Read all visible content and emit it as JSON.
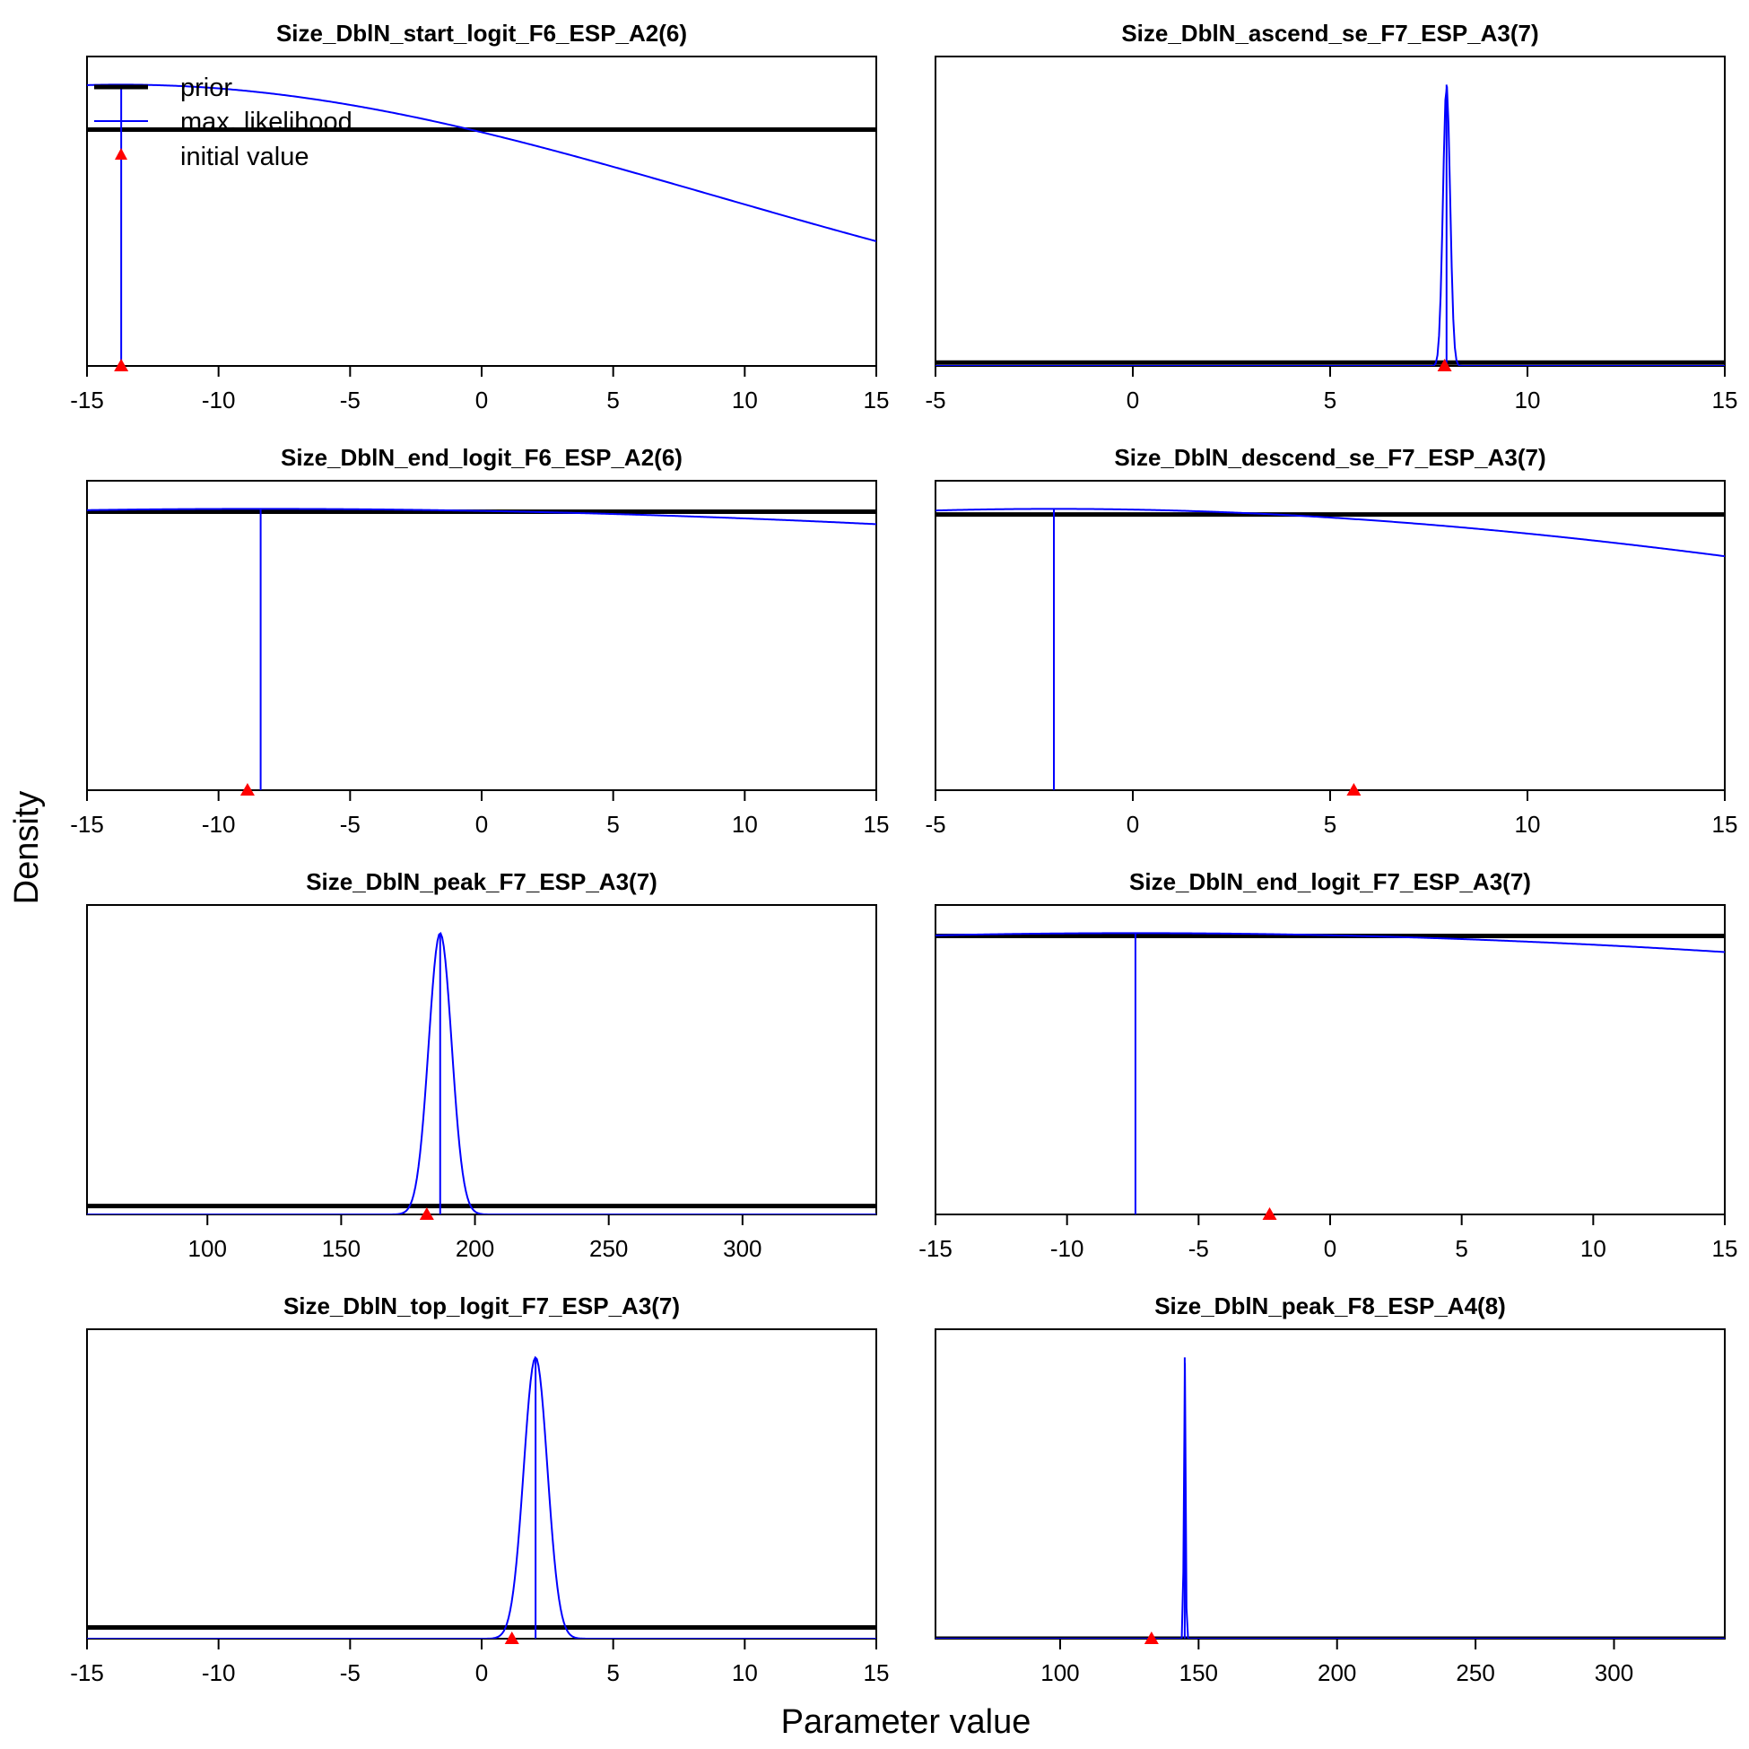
{
  "figure": {
    "xlabel": "Parameter value",
    "ylabel": "Density"
  },
  "legend": {
    "placement": "top-left of first panel",
    "entries": [
      {
        "label": "prior",
        "color": "#000000",
        "kind": "line"
      },
      {
        "label": "max. likelihood",
        "color": "#0000ff",
        "kind": "line"
      },
      {
        "label": "initial value",
        "color": "#ff0000",
        "kind": "triangle"
      }
    ]
  },
  "colors": {
    "prior": "#000000",
    "mle": "#0000ff",
    "initial": "#ff0000"
  },
  "chart_data": [
    {
      "type": "line",
      "title": "Size_DblN_start_logit_F6_ESP_A2(6)",
      "xlim": [
        -15,
        15
      ],
      "ticks": [
        -15,
        -10,
        -5,
        0,
        5,
        10,
        15
      ],
      "tick_labels": [
        "-15",
        "-10",
        "-5",
        "0",
        "5",
        "10",
        "15"
      ],
      "ylim": [
        0,
        1.1
      ],
      "prior": {
        "kind": "flat",
        "level": 0.84
      },
      "mle": {
        "kind": "sd_curve",
        "mean": -13.7,
        "sd": 22.5,
        "peak": 1.0
      },
      "mle_estimate": -13.7,
      "initial_value": -13.7
    },
    {
      "type": "line",
      "title": "Size_DblN_ascend_se_F7_ESP_A3(7)",
      "xlim": [
        -5,
        15
      ],
      "ticks": [
        -5,
        0,
        5,
        10,
        15
      ],
      "tick_labels": [
        "-5",
        "0",
        "5",
        "10",
        "15"
      ],
      "ylim": [
        0,
        1.1
      ],
      "prior": {
        "kind": "flat",
        "level": 0.012
      },
      "mle": {
        "kind": "normal",
        "mean": 7.95,
        "sd": 0.09,
        "peak": 1.0
      },
      "mle_estimate": 7.95,
      "initial_value": 7.9
    },
    {
      "type": "line",
      "title": "Size_DblN_end_logit_F6_ESP_A2(6)",
      "xlim": [
        -15,
        15
      ],
      "ticks": [
        -15,
        -10,
        -5,
        0,
        5,
        10,
        15
      ],
      "tick_labels": [
        "-15",
        "-10",
        "-5",
        "0",
        "5",
        "10",
        "15"
      ],
      "ylim": [
        0,
        1.1
      ],
      "prior": {
        "kind": "flat",
        "level": 0.99
      },
      "mle": {
        "kind": "sd_curve",
        "mean": -8.4,
        "sd": 70,
        "peak": 1.0
      },
      "mle_estimate": -8.4,
      "initial_value": -8.9
    },
    {
      "type": "line",
      "title": "Size_DblN_descend_se_F7_ESP_A3(7)",
      "xlim": [
        -5,
        15
      ],
      "ticks": [
        -5,
        0,
        5,
        10,
        15
      ],
      "tick_labels": [
        "-5",
        "0",
        "5",
        "10",
        "15"
      ],
      "ylim": [
        0,
        1.1
      ],
      "prior": {
        "kind": "flat",
        "level": 0.98
      },
      "mle": {
        "kind": "sd_curve",
        "mean": -2,
        "sd": 28,
        "peak": 1.0
      },
      "mle_estimate": -2,
      "initial_value": 5.6
    },
    {
      "type": "line",
      "title": "Size_DblN_peak_F7_ESP_A3(7)",
      "xlim": [
        55,
        350
      ],
      "ticks": [
        100,
        150,
        200,
        250,
        300
      ],
      "tick_labels": [
        "100",
        "150",
        "200",
        "250",
        "300"
      ],
      "ylim": [
        0,
        1.1
      ],
      "prior": {
        "kind": "flat",
        "level": 0.03
      },
      "mle": {
        "kind": "normal",
        "mean": 187,
        "sd": 4.3,
        "peak": 1.0
      },
      "mle_estimate": 187,
      "initial_value": 182
    },
    {
      "type": "line",
      "title": "Size_DblN_end_logit_F7_ESP_A3(7)",
      "xlim": [
        -15,
        15
      ],
      "ticks": [
        -15,
        -10,
        -5,
        0,
        5,
        10,
        15
      ],
      "tick_labels": [
        "-15",
        "-10",
        "-5",
        "0",
        "5",
        "10",
        "15"
      ],
      "ylim": [
        0,
        1.1
      ],
      "prior": {
        "kind": "flat",
        "level": 0.99
      },
      "mle": {
        "kind": "sd_curve",
        "mean": -7.4,
        "sd": 60,
        "peak": 1.0
      },
      "mle_estimate": -7.4,
      "initial_value": -2.3
    },
    {
      "type": "line",
      "title": "Size_DblN_top_logit_F7_ESP_A3(7)",
      "xlim": [
        -15,
        15
      ],
      "ticks": [
        -15,
        -10,
        -5,
        0,
        5,
        10,
        15
      ],
      "tick_labels": [
        "-15",
        "-10",
        "-5",
        "0",
        "5",
        "10",
        "15"
      ],
      "ylim": [
        0,
        1.1
      ],
      "prior": {
        "kind": "flat",
        "level": 0.04
      },
      "mle": {
        "kind": "normal",
        "mean": 2.05,
        "sd": 0.45,
        "peak": 1.0
      },
      "mle_estimate": 2.05,
      "initial_value": 1.15
    },
    {
      "type": "line",
      "title": "Size_DblN_peak_F8_ESP_A4(8)",
      "xlim": [
        55,
        340
      ],
      "ticks": [
        100,
        150,
        200,
        250,
        300
      ],
      "tick_labels": [
        "100",
        "150",
        "200",
        "250",
        "300"
      ],
      "ylim": [
        0,
        1.1
      ],
      "prior": {
        "kind": "flat",
        "level": 0.0
      },
      "mle": {
        "kind": "normal",
        "mean": 145,
        "sd": 0.3,
        "peak": 1.0
      },
      "mle_estimate": 145,
      "initial_value": 133
    }
  ]
}
